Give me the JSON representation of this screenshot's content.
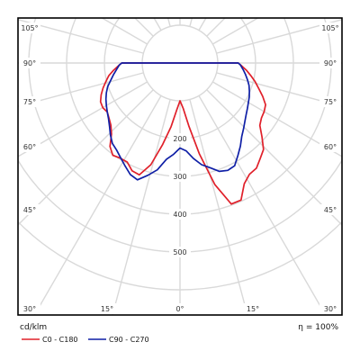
{
  "chart_data": {
    "type": "polar",
    "title": "",
    "unit_label": "cd/klm",
    "efficiency_label": "η = 100%",
    "angle_labels": [
      "105°",
      "90°",
      "75°",
      "60°",
      "45°",
      "30°",
      "15°",
      "0°"
    ],
    "radial_labels": [
      "200",
      "300",
      "400",
      "500"
    ],
    "radial_max": 600,
    "grid_circles": [
      100,
      200,
      300,
      400,
      500,
      600
    ],
    "series": [
      {
        "name": "C0 - C180",
        "color": "#e0202a",
        "left": [
          [
            0,
            100
          ],
          [
            4,
            125
          ],
          [
            8,
            170
          ],
          [
            12,
            220
          ],
          [
            16,
            280
          ],
          [
            20,
            315
          ],
          [
            24,
            312
          ],
          [
            28,
            297
          ],
          [
            32,
            297
          ],
          [
            36,
            302
          ],
          [
            40,
            288
          ],
          [
            44,
            261
          ],
          [
            48,
            246
          ],
          [
            52,
            238
          ],
          [
            56,
            232
          ],
          [
            60,
            236
          ],
          [
            64,
            234
          ],
          [
            68,
            225
          ],
          [
            72,
            214
          ],
          [
            76,
            202
          ],
          [
            80,
            191
          ],
          [
            84,
            176
          ],
          [
            88,
            161
          ],
          [
            90,
            154
          ]
        ],
        "right": [
          [
            0,
            100
          ],
          [
            4,
            120
          ],
          [
            8,
            168
          ],
          [
            12,
            245
          ],
          [
            16,
            335
          ],
          [
            20,
            397
          ],
          [
            24,
            397
          ],
          [
            28,
            362
          ],
          [
            32,
            347
          ],
          [
            36,
            344
          ],
          [
            40,
            330
          ],
          [
            44,
            318
          ],
          [
            48,
            292
          ],
          [
            52,
            268
          ],
          [
            56,
            260
          ],
          [
            60,
            257
          ],
          [
            64,
            252
          ],
          [
            68,
            236
          ],
          [
            72,
            219
          ],
          [
            76,
            205
          ],
          [
            80,
            190
          ],
          [
            84,
            176
          ],
          [
            88,
            161
          ],
          [
            90,
            154
          ]
        ]
      },
      {
        "name": "C90 - C270",
        "color": "#0f1fa6",
        "left": [
          [
            0,
            225
          ],
          [
            4,
            242
          ],
          [
            8,
            257
          ],
          [
            12,
            289
          ],
          [
            16,
            309
          ],
          [
            20,
            329
          ],
          [
            24,
            323
          ],
          [
            28,
            309
          ],
          [
            32,
            296
          ],
          [
            36,
            285
          ],
          [
            40,
            278
          ],
          [
            44,
            265
          ],
          [
            48,
            251
          ],
          [
            52,
            240
          ],
          [
            56,
            232
          ],
          [
            60,
            225
          ],
          [
            64,
            218
          ],
          [
            68,
            210
          ],
          [
            72,
            201
          ],
          [
            76,
            189
          ],
          [
            80,
            179
          ],
          [
            84,
            169
          ],
          [
            88,
            161
          ],
          [
            90,
            154
          ]
        ],
        "right": [
          [
            0,
            225
          ],
          [
            4,
            233
          ],
          [
            8,
            255
          ],
          [
            12,
            275
          ],
          [
            16,
            288
          ],
          [
            20,
            305
          ],
          [
            24,
            311
          ],
          [
            28,
            308
          ],
          [
            32,
            289
          ],
          [
            36,
            272
          ],
          [
            40,
            254
          ],
          [
            44,
            242
          ],
          [
            48,
            231
          ],
          [
            52,
            222
          ],
          [
            56,
            215
          ],
          [
            60,
            209
          ],
          [
            64,
            204
          ],
          [
            68,
            198
          ],
          [
            72,
            192
          ],
          [
            76,
            184
          ],
          [
            80,
            176
          ],
          [
            84,
            168
          ],
          [
            88,
            160
          ],
          [
            90,
            154
          ]
        ]
      }
    ]
  }
}
